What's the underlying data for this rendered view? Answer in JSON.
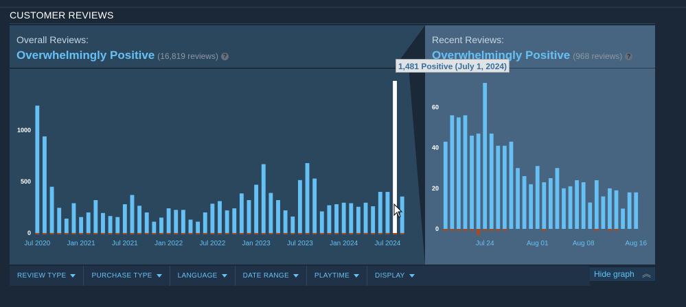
{
  "section": {
    "title": "CUSTOMER REVIEWS"
  },
  "overall": {
    "label": "Overall Reviews:",
    "verdict": "Overwhelmingly Positive",
    "count": "(16,819 reviews)"
  },
  "recent": {
    "label": "Recent Reviews:",
    "verdict": "Overwhelmingly Positive",
    "count": "(968 reviews)"
  },
  "help_glyph": "?",
  "tooltip": "1,481 Positive (July 1, 2024)",
  "filters": [
    {
      "label": "REVIEW TYPE"
    },
    {
      "label": "PURCHASE TYPE"
    },
    {
      "label": "LANGUAGE"
    },
    {
      "label": "DATE RANGE"
    },
    {
      "label": "PLAYTIME"
    },
    {
      "label": "DISPLAY"
    }
  ],
  "hide_graph": {
    "label": "Hide graph"
  },
  "colors": {
    "positive": "#66c0f4",
    "negative": "#a34c25",
    "highlight": "#ffffff"
  },
  "chart_data": [
    {
      "type": "bar",
      "xlabels": [
        "Jul 2020",
        "Jan 2021",
        "Jul 2021",
        "Jan 2022",
        "Jul 2022",
        "Jan 2023",
        "Jul 2023",
        "Jan 2024",
        "Jul 2024"
      ],
      "label_every": 6,
      "yticks": [
        0,
        500,
        1000
      ],
      "ylim": [
        0,
        1481
      ],
      "positive": [
        1240,
        940,
        450,
        245,
        140,
        290,
        155,
        200,
        320,
        195,
        165,
        155,
        280,
        370,
        265,
        200,
        110,
        150,
        240,
        225,
        225,
        130,
        110,
        200,
        285,
        310,
        220,
        240,
        385,
        320,
        470,
        670,
        390,
        320,
        220,
        160,
        515,
        680,
        530,
        210,
        270,
        280,
        295,
        290,
        255,
        295,
        260,
        400,
        400,
        1481,
        355
      ],
      "negative": [
        5,
        10,
        10,
        5,
        5,
        5,
        5,
        5,
        5,
        5,
        5,
        5,
        5,
        5,
        5,
        5,
        5,
        5,
        5,
        5,
        5,
        5,
        5,
        5,
        5,
        5,
        5,
        5,
        5,
        5,
        5,
        5,
        5,
        5,
        5,
        5,
        5,
        5,
        5,
        5,
        5,
        5,
        5,
        5,
        5,
        5,
        5,
        5,
        5,
        15,
        5
      ],
      "highlight_index": 49
    },
    {
      "type": "bar",
      "xlabels": [
        "Jul 24",
        "Aug 01",
        "Aug 08",
        "Aug 16"
      ],
      "label_positions": [
        6,
        14,
        21,
        29
      ],
      "yticks": [
        0,
        20,
        40,
        60
      ],
      "ylim": [
        0,
        73
      ],
      "positive": [
        43,
        56,
        55,
        56,
        46,
        47,
        72,
        47,
        41,
        41,
        43,
        30,
        26,
        22,
        31,
        23,
        25,
        30,
        20,
        21,
        24,
        23,
        13,
        24,
        16,
        20,
        19,
        10,
        18,
        18
      ],
      "negative": [
        1,
        1,
        1,
        1,
        1,
        3,
        1,
        1,
        1,
        1,
        0,
        0,
        0,
        0,
        0,
        1,
        0,
        0,
        0,
        0,
        0,
        0,
        0,
        1,
        0,
        1,
        1,
        0,
        0,
        0
      ]
    }
  ]
}
